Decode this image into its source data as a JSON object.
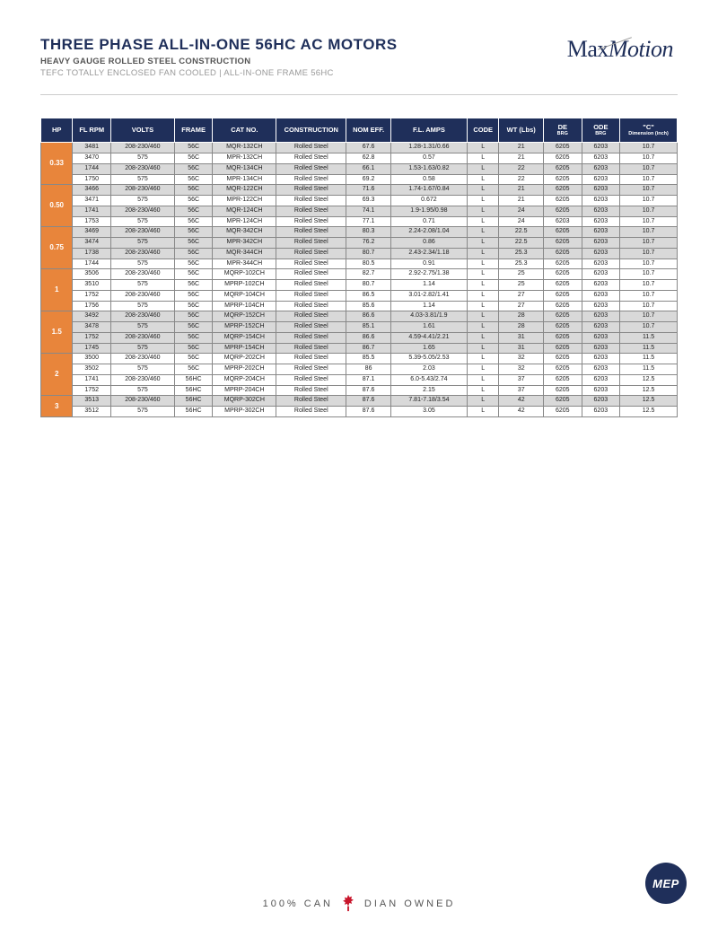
{
  "header": {
    "title": "THREE PHASE ALL-IN-ONE 56HC AC MOTORS",
    "subtitle": "HEAVY GAUGE ROLLED STEEL CONSTRUCTION",
    "tagline": "TEFC TOTALLY ENCLOSED FAN COOLED | ALL-IN-ONE FRAME 56HC",
    "logo_prefix": "Max",
    "logo_suffix": "Motion"
  },
  "colors": {
    "header_bg": "#1f2f5a",
    "hp_cell_bg": "#e8853b",
    "row_shade": "#d9d9d9",
    "border": "#888888",
    "page_bg": "#ffffff",
    "text": "#222222"
  },
  "table": {
    "columns": [
      {
        "label": "HP"
      },
      {
        "label": "FL RPM"
      },
      {
        "label": "VOLTS"
      },
      {
        "label": "FRAME"
      },
      {
        "label": "CAT NO."
      },
      {
        "label": "CONSTRUCTION"
      },
      {
        "label": "NOM EFF."
      },
      {
        "label": "F.L. AMPS"
      },
      {
        "label": "CODE"
      },
      {
        "label": "WT (Lbs)"
      },
      {
        "label": "DE",
        "sub": "BRG"
      },
      {
        "label": "ODE",
        "sub": "BRG"
      },
      {
        "label": "\"C\"",
        "sub": "Dimension (inch)"
      }
    ],
    "groups": [
      {
        "hp": "0.33",
        "rows": [
          {
            "shade": true,
            "c": [
              "3481",
              "208-230/460",
              "56C",
              "MQR-132CH",
              "Rolled Steel",
              "67.6",
              "1.28-1.31/0.66",
              "L",
              "21",
              "6205",
              "6203",
              "10.7"
            ]
          },
          {
            "shade": false,
            "c": [
              "3470",
              "575",
              "56C",
              "MPR-132CH",
              "Rolled Steel",
              "62.8",
              "0.57",
              "L",
              "21",
              "6205",
              "6203",
              "10.7"
            ]
          },
          {
            "shade": true,
            "c": [
              "1744",
              "208-230/460",
              "56C",
              "MQR-134CH",
              "Rolled Steel",
              "66.1",
              "1.53-1.63/0.82",
              "L",
              "22",
              "6205",
              "6203",
              "10.7"
            ]
          },
          {
            "shade": false,
            "c": [
              "1750",
              "575",
              "56C",
              "MPR-134CH",
              "Rolled Steel",
              "69.2",
              "0.58",
              "L",
              "22",
              "6205",
              "6203",
              "10.7"
            ]
          }
        ]
      },
      {
        "hp": "0.50",
        "rows": [
          {
            "shade": true,
            "c": [
              "3466",
              "208-230/460",
              "56C",
              "MQR-122CH",
              "Rolled Steel",
              "71.6",
              "1.74-1.67/0.84",
              "L",
              "21",
              "6205",
              "6203",
              "10.7"
            ]
          },
          {
            "shade": false,
            "c": [
              "3471",
              "575",
              "56C",
              "MPR-122CH",
              "Rolled Steel",
              "69.3",
              "0.672",
              "L",
              "21",
              "6205",
              "6203",
              "10.7"
            ]
          },
          {
            "shade": true,
            "c": [
              "1741",
              "208-230/460",
              "56C",
              "MQR-124CH",
              "Rolled Steel",
              "74.1",
              "1.9-1.95/0.98",
              "L",
              "24",
              "6205",
              "6203",
              "10.7"
            ]
          },
          {
            "shade": false,
            "c": [
              "1753",
              "575",
              "56C",
              "MPR-124CH",
              "Rolled Steel",
              "77.1",
              "0.71",
              "L",
              "24",
              "6203",
              "6203",
              "10.7"
            ]
          }
        ]
      },
      {
        "hp": "0.75",
        "rows": [
          {
            "shade": true,
            "c": [
              "3469",
              "208-230/460",
              "56C",
              "MQR-342CH",
              "Rolled Steel",
              "80.3",
              "2.24-2.08/1.04",
              "L",
              "22.5",
              "6205",
              "6203",
              "10.7"
            ]
          },
          {
            "shade": true,
            "c": [
              "3474",
              "575",
              "56C",
              "MPR-342CH",
              "Rolled Steel",
              "76.2",
              "0.86",
              "L",
              "22.5",
              "6205",
              "6203",
              "10.7"
            ]
          },
          {
            "shade": true,
            "c": [
              "1738",
              "208-230/460",
              "56C",
              "MQR-344CH",
              "Rolled Steel",
              "80.7",
              "2.43-2.34/1.18",
              "L",
              "25.3",
              "6205",
              "6203",
              "10.7"
            ]
          },
          {
            "shade": false,
            "c": [
              "1744",
              "575",
              "56C",
              "MPR-344CH",
              "Rolled Steel",
              "80.5",
              "0.91",
              "L",
              "25.3",
              "6205",
              "6203",
              "10.7"
            ]
          }
        ]
      },
      {
        "hp": "1",
        "rows": [
          {
            "shade": false,
            "c": [
              "3506",
              "208-230/460",
              "56C",
              "MQRP-102CH",
              "Rolled Steel",
              "82.7",
              "2.92-2.75/1.38",
              "L",
              "25",
              "6205",
              "6203",
              "10.7"
            ]
          },
          {
            "shade": false,
            "c": [
              "3510",
              "575",
              "56C",
              "MPRP-102CH",
              "Rolled Steel",
              "80.7",
              "1.14",
              "L",
              "25",
              "6205",
              "6203",
              "10.7"
            ]
          },
          {
            "shade": false,
            "c": [
              "1752",
              "208-230/460",
              "56C",
              "MQRP-104CH",
              "Rolled Steel",
              "86.5",
              "3.01-2.82/1.41",
              "L",
              "27",
              "6205",
              "6203",
              "10.7"
            ]
          },
          {
            "shade": false,
            "c": [
              "1756",
              "575",
              "56C",
              "MPRP-104CH",
              "Rolled Steel",
              "85.6",
              "1.14",
              "L",
              "27",
              "6205",
              "6203",
              "10.7"
            ]
          }
        ]
      },
      {
        "hp": "1.5",
        "rows": [
          {
            "shade": true,
            "c": [
              "3492",
              "208-230/460",
              "56C",
              "MQRP-152CH",
              "Rolled Steel",
              "86.6",
              "4.03-3.81/1.9",
              "L",
              "28",
              "6205",
              "6203",
              "10.7"
            ]
          },
          {
            "shade": true,
            "c": [
              "3478",
              "575",
              "56C",
              "MPRP-152CH",
              "Rolled Steel",
              "85.1",
              "1.61",
              "L",
              "28",
              "6205",
              "6203",
              "10.7"
            ]
          },
          {
            "shade": true,
            "c": [
              "1752",
              "208-230/460",
              "56C",
              "MQRP-154CH",
              "Rolled Steel",
              "86.6",
              "4.59-4.41/2.21",
              "L",
              "31",
              "6205",
              "6203",
              "11.5"
            ]
          },
          {
            "shade": true,
            "c": [
              "1745",
              "575",
              "56C",
              "MPRP-154CH",
              "Rolled Steel",
              "86.7",
              "1.65",
              "L",
              "31",
              "6205",
              "6203",
              "11.5"
            ]
          }
        ]
      },
      {
        "hp": "2",
        "rows": [
          {
            "shade": false,
            "c": [
              "3500",
              "208-230/460",
              "56C",
              "MQRP-202CH",
              "Rolled Steel",
              "85.5",
              "5.39-5.05/2.53",
              "L",
              "32",
              "6205",
              "6203",
              "11.5"
            ]
          },
          {
            "shade": false,
            "c": [
              "3502",
              "575",
              "56C",
              "MPRP-202CH",
              "Rolled Steel",
              "86",
              "2.03",
              "L",
              "32",
              "6205",
              "6203",
              "11.5"
            ]
          },
          {
            "shade": false,
            "c": [
              "1741",
              "208-230/460",
              "56HC",
              "MQRP-204CH",
              "Rolled Steel",
              "87.1",
              "6.0-5.43/2.74",
              "L",
              "37",
              "6205",
              "6203",
              "12.5"
            ]
          },
          {
            "shade": false,
            "c": [
              "1752",
              "575",
              "56HC",
              "MPRP-204CH",
              "Rolled Steel",
              "87.6",
              "2.15",
              "L",
              "37",
              "6205",
              "6203",
              "12.5"
            ]
          }
        ]
      },
      {
        "hp": "3",
        "rows": [
          {
            "shade": true,
            "c": [
              "3513",
              "208-230/460",
              "56HC",
              "MQRP-302CH",
              "Rolled Steel",
              "87.6",
              "7.81-7.18/3.54",
              "L",
              "42",
              "6205",
              "6203",
              "12.5"
            ]
          },
          {
            "shade": false,
            "c": [
              "3512",
              "575",
              "56HC",
              "MPRP-302CH",
              "Rolled Steel",
              "87.6",
              "3.05",
              "L",
              "42",
              "6205",
              "6203",
              "12.5"
            ]
          }
        ]
      }
    ]
  },
  "footer": {
    "text_before": "100% CAN",
    "text_after": "DIAN OWNED",
    "badge": "MEP",
    "leaf_color": "#c8152b"
  }
}
